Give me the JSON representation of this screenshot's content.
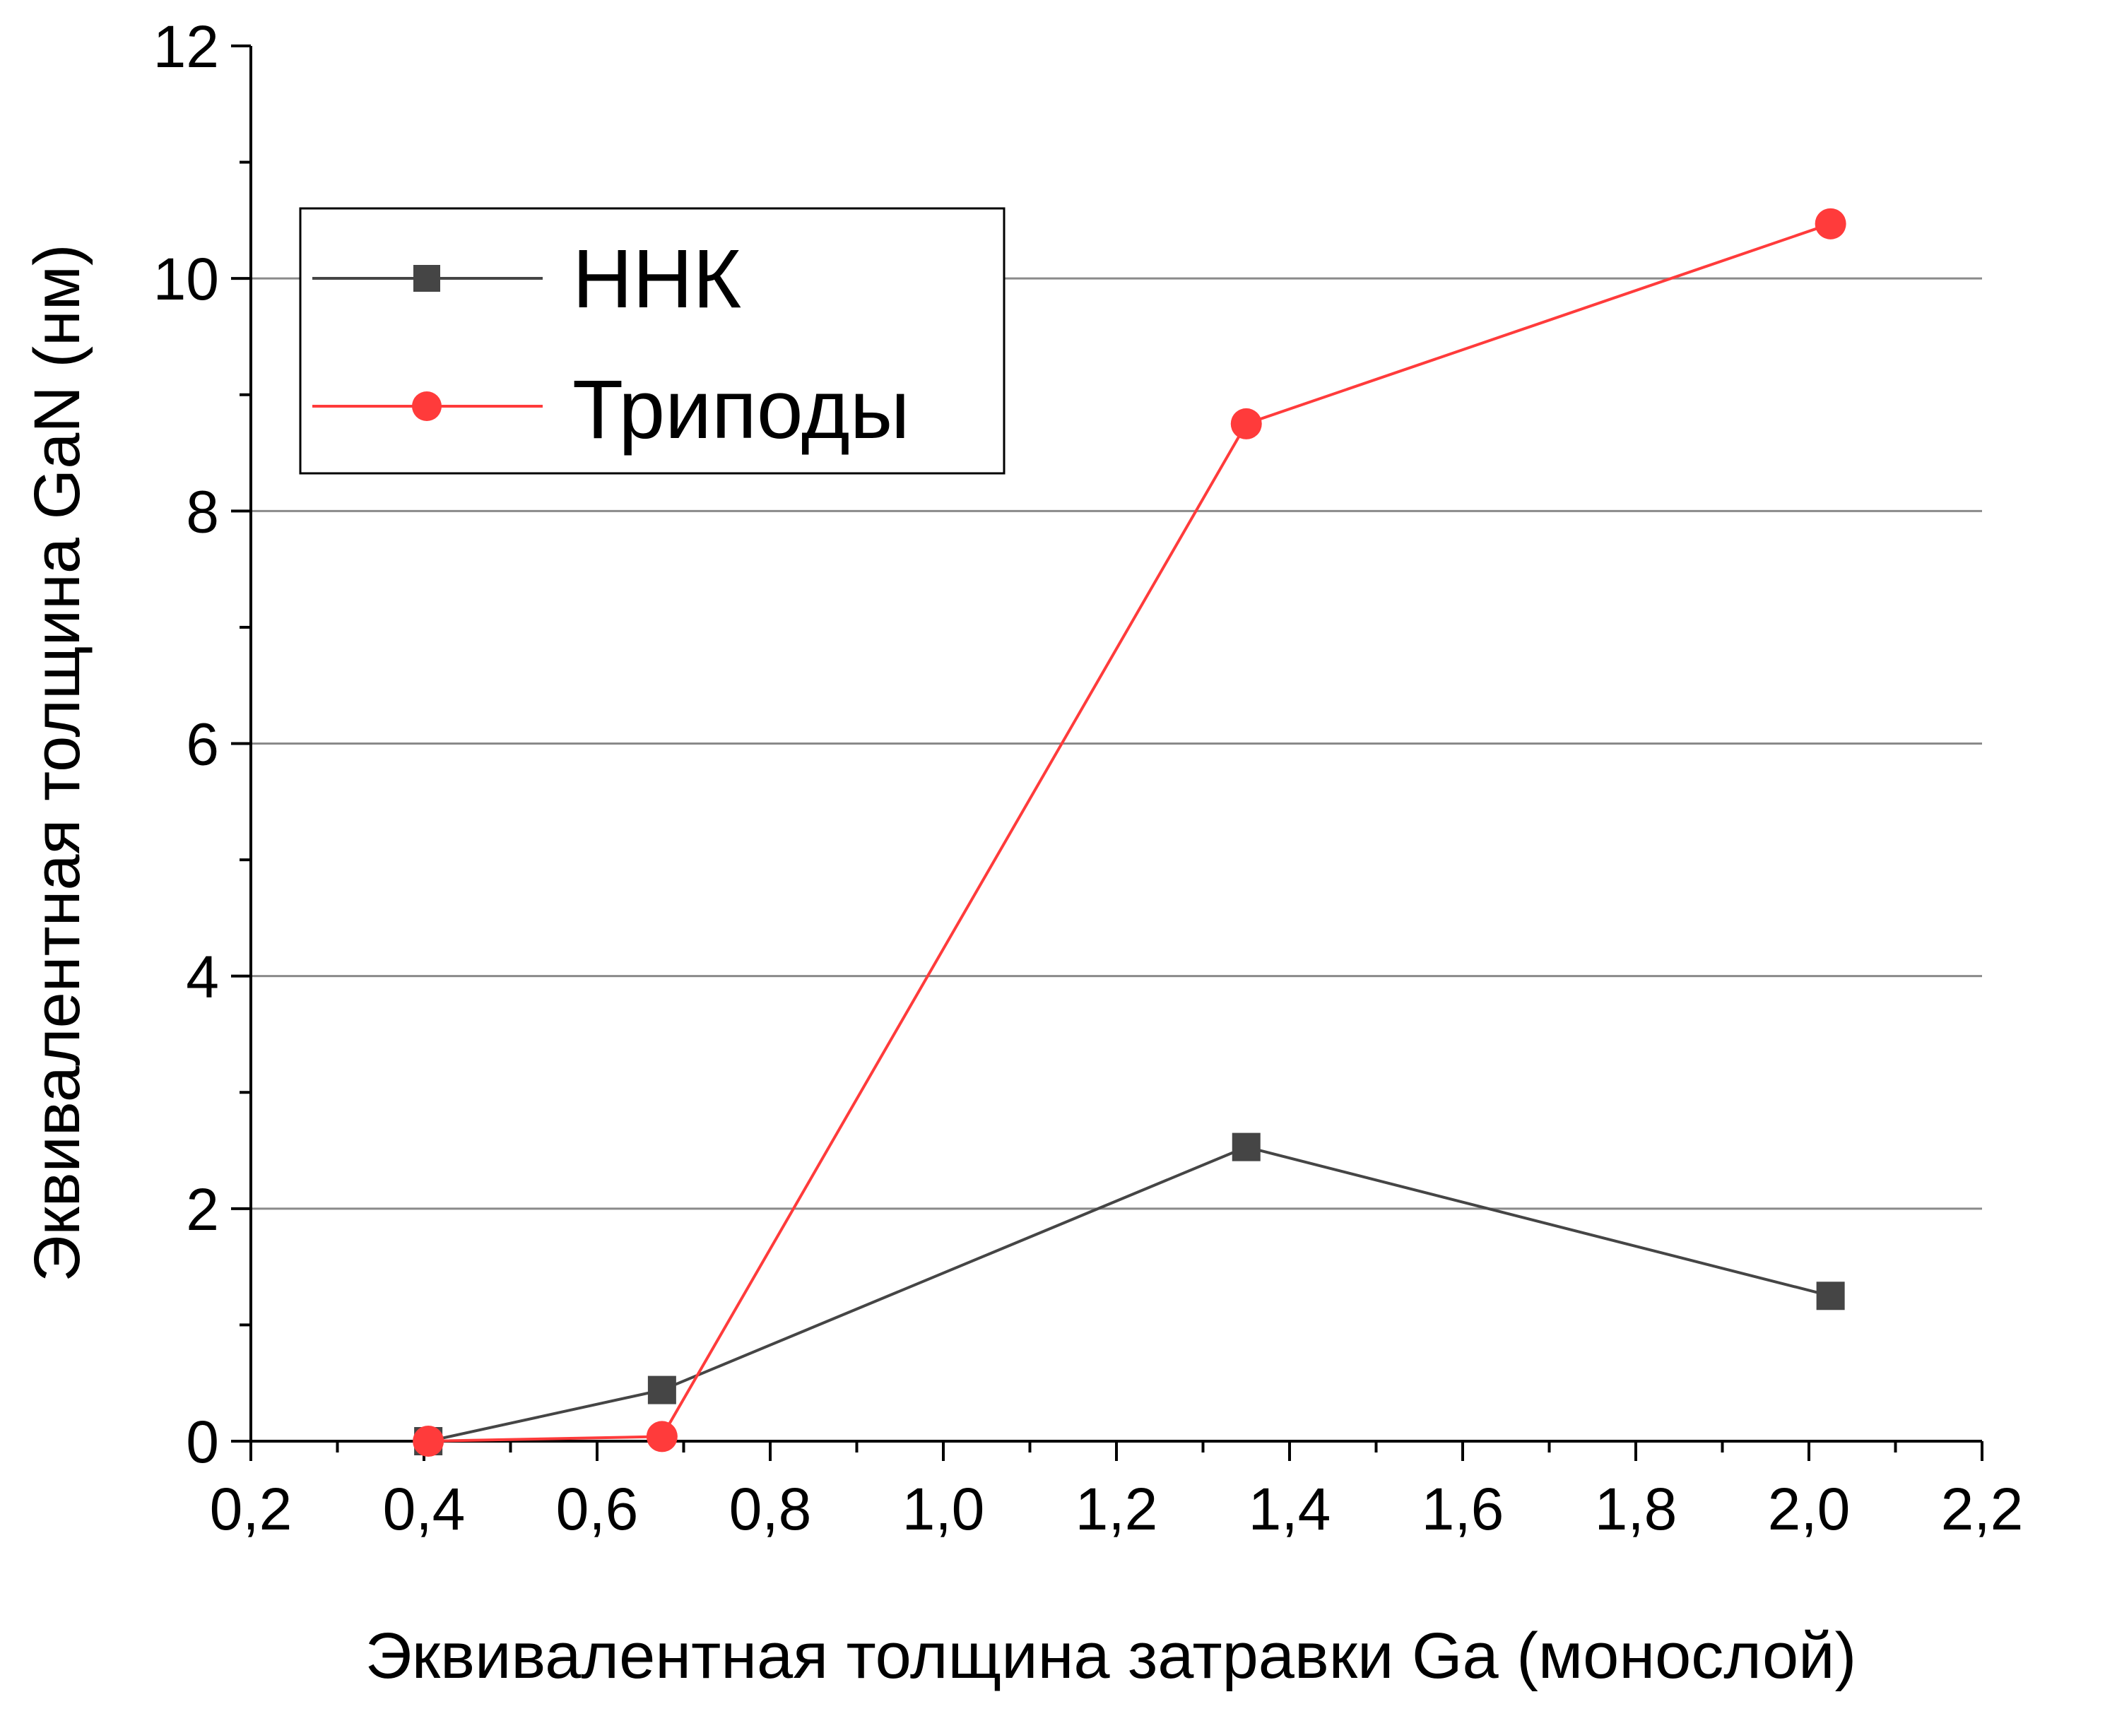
{
  "chart_data": {
    "type": "line",
    "title": "",
    "xlabel": "Эквивалентная толщина затравки Ga (монослой)",
    "ylabel": "Эквивалентная толщина GaN (нм)",
    "xlim": [
      0.2,
      2.2
    ],
    "ylim": [
      0,
      12
    ],
    "x_ticks": [
      "0,2",
      "0,4",
      "0,6",
      "0,8",
      "1,0",
      "1,2",
      "1,4",
      "1,6",
      "1,8",
      "2,0",
      "2,2"
    ],
    "y_ticks": [
      "0",
      "2",
      "4",
      "6",
      "8",
      "10",
      "12"
    ],
    "grid": "horizontal major lines",
    "legend_position": "top-left",
    "series": [
      {
        "name": "ННК",
        "color": "#454545",
        "marker": "square",
        "x": [
          0.405,
          0.675,
          1.35,
          2.025
        ],
        "y": [
          0.0,
          0.44,
          2.53,
          1.25
        ]
      },
      {
        "name": "Триподы",
        "color": "#ff3b3b",
        "marker": "circle",
        "x": [
          0.405,
          0.675,
          1.35,
          2.025
        ],
        "y": [
          0.0,
          0.04,
          8.75,
          10.47
        ]
      }
    ]
  }
}
